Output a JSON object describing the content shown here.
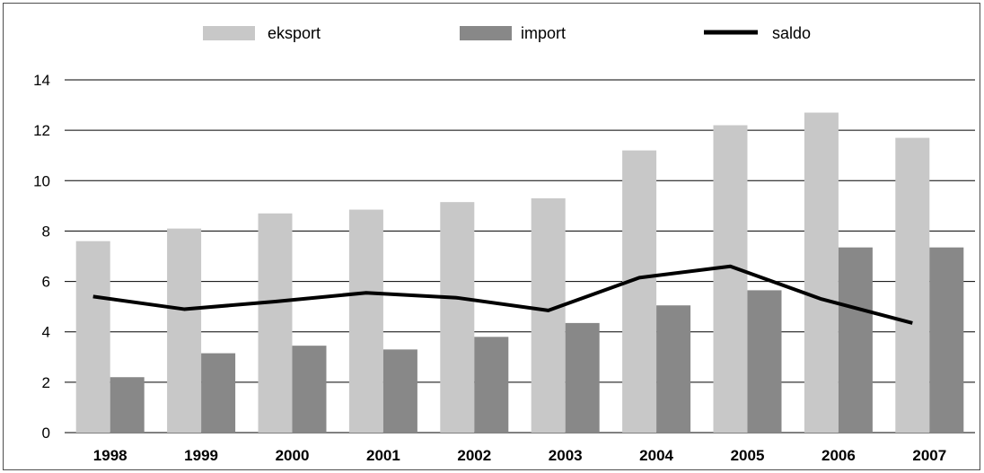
{
  "chart_data": {
    "type": "bar",
    "title": "",
    "xlabel": "",
    "ylabel": "",
    "categories": [
      "1998",
      "1999",
      "2000",
      "2001",
      "2002",
      "2003",
      "2004",
      "2005",
      "2006",
      "2007"
    ],
    "series": [
      {
        "name": "eksport",
        "kind": "bar",
        "color": "#c8c8c8",
        "values": [
          7.6,
          8.1,
          8.7,
          8.85,
          9.15,
          9.3,
          11.2,
          12.2,
          12.7,
          11.7
        ]
      },
      {
        "name": "import",
        "kind": "bar",
        "color": "#888888",
        "values": [
          2.2,
          3.15,
          3.45,
          3.3,
          3.8,
          4.35,
          5.05,
          5.65,
          7.35,
          7.35
        ]
      },
      {
        "name": "saldo",
        "kind": "line",
        "color": "#000000",
        "values": [
          5.4,
          4.9,
          5.2,
          5.55,
          5.35,
          4.85,
          6.15,
          6.6,
          5.3,
          4.35
        ]
      }
    ],
    "ylim": [
      0,
      14
    ],
    "yticks": [
      0,
      2,
      4,
      6,
      8,
      10,
      12,
      14
    ],
    "grid": "horizontal",
    "legend_position": "top"
  }
}
